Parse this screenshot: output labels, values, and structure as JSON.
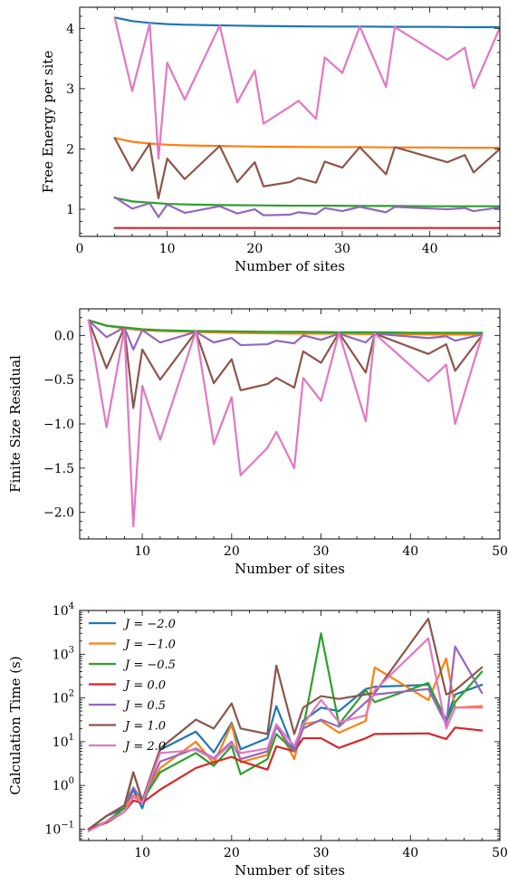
{
  "chart_data": [
    {
      "type": "line",
      "xlabel": "Number of sites",
      "ylabel": "Free Energy per site",
      "xlim": [
        0,
        48
      ],
      "ylim": [
        0.55,
        4.35
      ],
      "xticks": [
        0,
        10,
        20,
        30,
        40
      ],
      "yticks": [
        1,
        2,
        3,
        4
      ],
      "series": [
        {
          "color": "#1f77b4",
          "x": [
            4,
            6,
            8,
            10,
            12,
            16,
            20,
            24,
            28,
            32,
            36,
            40,
            44,
            48
          ],
          "y": [
            4.18,
            4.12,
            4.09,
            4.07,
            4.06,
            4.05,
            4.04,
            4.035,
            4.03,
            4.03,
            4.025,
            4.025,
            4.02,
            4.02
          ]
        },
        {
          "color": "#ff7f0e",
          "x": [
            4,
            6,
            8,
            10,
            12,
            16,
            20,
            24,
            28,
            32,
            36,
            40,
            44,
            48
          ],
          "y": [
            2.18,
            2.12,
            2.09,
            2.07,
            2.06,
            2.05,
            2.04,
            2.035,
            2.03,
            2.03,
            2.025,
            2.025,
            2.02,
            2.02
          ]
        },
        {
          "color": "#2ca02c",
          "x": [
            4,
            6,
            8,
            10,
            12,
            16,
            20,
            24,
            28,
            32,
            36,
            40,
            44,
            48
          ],
          "y": [
            1.19,
            1.13,
            1.11,
            1.09,
            1.08,
            1.07,
            1.065,
            1.06,
            1.06,
            1.055,
            1.055,
            1.05,
            1.05,
            1.05
          ]
        },
        {
          "color": "#d62728",
          "x": [
            4,
            48
          ],
          "y": [
            0.69,
            0.69
          ]
        },
        {
          "color": "#9467bd",
          "x": [
            4,
            6,
            8,
            9,
            10,
            12,
            16,
            18,
            20,
            21,
            24,
            25,
            27,
            28,
            30,
            32,
            35,
            36,
            42,
            44,
            45,
            48
          ],
          "y": [
            1.2,
            1.01,
            1.1,
            0.87,
            1.08,
            0.94,
            1.05,
            0.93,
            1.0,
            0.9,
            0.91,
            0.95,
            0.92,
            1.02,
            0.97,
            1.04,
            0.95,
            1.04,
            1.0,
            1.02,
            0.97,
            1.03
          ]
        },
        {
          "color": "#8c564b",
          "x": [
            4,
            6,
            8,
            9,
            10,
            12,
            16,
            18,
            20,
            21,
            24,
            25,
            27,
            28,
            30,
            32,
            35,
            36,
            42,
            44,
            45,
            48
          ],
          "y": [
            2.18,
            1.64,
            2.09,
            1.18,
            1.84,
            1.5,
            2.05,
            1.45,
            1.78,
            1.38,
            1.45,
            1.52,
            1.44,
            1.79,
            1.69,
            2.03,
            1.58,
            2.03,
            1.78,
            1.9,
            1.61,
            2.0
          ]
        },
        {
          "color": "#e377c2",
          "x": [
            4,
            6,
            8,
            9,
            10,
            12,
            16,
            18,
            20,
            21,
            24,
            25,
            27,
            28,
            30,
            32,
            35,
            36,
            42,
            44,
            45,
            48
          ],
          "y": [
            4.18,
            2.96,
            4.08,
            1.84,
            3.43,
            2.82,
            4.05,
            2.77,
            3.3,
            2.42,
            2.7,
            2.8,
            2.5,
            3.52,
            3.26,
            4.03,
            3.03,
            4.02,
            3.48,
            3.68,
            3.01,
            4.01
          ]
        }
      ]
    },
    {
      "type": "line",
      "xlabel": "Number of sites",
      "ylabel": "Finite Size Residual",
      "xlim": [
        3,
        50
      ],
      "ylim": [
        -2.3,
        0.3
      ],
      "xticks": [
        10,
        20,
        30,
        40,
        50
      ],
      "yticks": [
        0.0,
        -0.5,
        -1.0,
        -1.5,
        -2.0
      ],
      "ytick_labels": [
        "0.0",
        "−0.5",
        "−1.0",
        "−1.5",
        "−2.0"
      ],
      "series": [
        {
          "color": "#1f77b4",
          "x": [
            4,
            6,
            8,
            10,
            12,
            16,
            20,
            24,
            28,
            32,
            36,
            40,
            44,
            48
          ],
          "y": [
            0.17,
            0.11,
            0.08,
            0.06,
            0.05,
            0.04,
            0.03,
            0.025,
            0.02,
            0.02,
            0.015,
            0.015,
            0.01,
            0.01
          ]
        },
        {
          "color": "#ff7f0e",
          "x": [
            4,
            6,
            8,
            10,
            12,
            16,
            20,
            24,
            28,
            32,
            36,
            40,
            44,
            48
          ],
          "y": [
            0.17,
            0.11,
            0.08,
            0.06,
            0.05,
            0.04,
            0.03,
            0.025,
            0.02,
            0.02,
            0.015,
            0.015,
            0.01,
            0.01
          ]
        },
        {
          "color": "#2ca02c",
          "x": [
            4,
            6,
            8,
            10,
            12,
            16,
            20,
            24,
            28,
            32,
            36,
            40,
            44,
            48
          ],
          "y": [
            0.17,
            0.11,
            0.09,
            0.07,
            0.06,
            0.05,
            0.045,
            0.04,
            0.04,
            0.035,
            0.035,
            0.03,
            0.03,
            0.03
          ]
        },
        {
          "color": "#9467bd",
          "x": [
            4,
            6,
            8,
            9,
            10,
            12,
            16,
            18,
            20,
            21,
            24,
            25,
            27,
            28,
            30,
            32,
            35,
            36,
            42,
            44,
            45,
            48
          ],
          "y": [
            0.17,
            -0.02,
            0.09,
            -0.16,
            0.06,
            -0.08,
            0.04,
            -0.08,
            -0.03,
            -0.11,
            -0.1,
            -0.06,
            -0.09,
            0.0,
            -0.05,
            0.02,
            -0.08,
            0.02,
            -0.03,
            -0.01,
            -0.06,
            0.01
          ]
        },
        {
          "color": "#8c564b",
          "x": [
            4,
            6,
            8,
            9,
            10,
            12,
            16,
            18,
            20,
            21,
            24,
            25,
            27,
            28,
            30,
            32,
            35,
            36,
            42,
            44,
            45,
            48
          ],
          "y": [
            0.17,
            -0.37,
            0.09,
            -0.82,
            -0.16,
            -0.5,
            0.04,
            -0.54,
            -0.27,
            -0.62,
            -0.55,
            -0.48,
            -0.59,
            -0.18,
            -0.31,
            0.03,
            -0.42,
            0.02,
            -0.21,
            -0.1,
            -0.4,
            0.0
          ]
        },
        {
          "color": "#e377c2",
          "x": [
            4,
            6,
            8,
            9,
            10,
            12,
            16,
            18,
            20,
            21,
            24,
            25,
            27,
            28,
            30,
            32,
            35,
            36,
            42,
            44,
            45,
            48
          ],
          "y": [
            0.17,
            -1.04,
            0.07,
            -2.16,
            -0.57,
            -1.18,
            0.05,
            -1.23,
            -0.7,
            -1.58,
            -1.27,
            -1.09,
            -1.5,
            -0.48,
            -0.74,
            0.03,
            -0.97,
            0.02,
            -0.52,
            -0.33,
            -1.0,
            0.0
          ]
        }
      ]
    },
    {
      "type": "line",
      "xlabel": "Number of sites",
      "ylabel": "Calculation Time (s)",
      "yscale": "log",
      "xlim": [
        3,
        50
      ],
      "ylim": [
        0.055,
        10000
      ],
      "xticks": [
        10,
        20,
        30,
        40,
        50
      ],
      "yticks": [
        0.1,
        1,
        10,
        100,
        1000,
        10000
      ],
      "ytick_labels": [
        [
          "10",
          "−1"
        ],
        [
          "10",
          "0"
        ],
        [
          "10",
          "1"
        ],
        [
          "10",
          "2"
        ],
        [
          "10",
          "3"
        ],
        [
          "10",
          "4"
        ]
      ],
      "legend": "upper-left",
      "series": [
        {
          "name": "J = −2.0",
          "color": "#1f77b4",
          "x": [
            4,
            6,
            8,
            9,
            10,
            12,
            16,
            18,
            20,
            21,
            24,
            25,
            27,
            28,
            30,
            32,
            35,
            36,
            42,
            44,
            45,
            48
          ],
          "y": [
            0.1,
            0.2,
            0.3,
            0.8,
            0.3,
            6.5,
            17,
            5.7,
            27,
            6.7,
            12,
            65,
            6.2,
            30,
            60,
            50,
            160,
            180,
            200,
            32,
            120,
            200
          ]
        },
        {
          "name": "J = −1.0",
          "color": "#ff7f0e",
          "x": [
            4,
            6,
            8,
            9,
            10,
            12,
            16,
            18,
            20,
            21,
            24,
            25,
            27,
            28,
            30,
            32,
            35,
            36,
            42,
            44,
            45,
            48
          ],
          "y": [
            0.1,
            0.15,
            0.3,
            0.6,
            0.45,
            2.5,
            10,
            3.2,
            25,
            3.4,
            5,
            25,
            4,
            25,
            30,
            16,
            30,
            500,
            90,
            800,
            60,
            65
          ]
        },
        {
          "name": "J = −0.5",
          "color": "#2ca02c",
          "x": [
            4,
            6,
            8,
            9,
            10,
            12,
            16,
            18,
            20,
            21,
            24,
            25,
            27,
            28,
            30,
            32,
            35,
            36,
            42,
            44,
            45,
            48
          ],
          "y": [
            0.1,
            0.15,
            0.3,
            2.0,
            0.45,
            2.0,
            5.5,
            2.8,
            8,
            1.8,
            4,
            15,
            6,
            20,
            3000,
            25,
            150,
            80,
            220,
            28,
            80,
            400
          ]
        },
        {
          "name": "J = 0.0",
          "color": "#d62728",
          "x": [
            4,
            6,
            8,
            9,
            10,
            12,
            16,
            18,
            20,
            21,
            24,
            25,
            27,
            28,
            30,
            32,
            35,
            36,
            42,
            44,
            45,
            48
          ],
          "y": [
            0.1,
            0.14,
            0.25,
            0.45,
            0.4,
            0.8,
            2.5,
            3.4,
            4.5,
            3.6,
            2.3,
            7.8,
            6,
            12,
            12,
            7.2,
            12,
            15,
            15.5,
            11.5,
            21,
            18
          ]
        },
        {
          "name": "J = 0.5",
          "color": "#9467bd",
          "x": [
            4,
            6,
            8,
            9,
            10,
            12,
            16,
            18,
            20,
            21,
            24,
            25,
            27,
            28,
            30,
            32,
            35,
            36,
            42,
            44,
            45,
            48
          ],
          "y": [
            0.1,
            0.2,
            0.35,
            0.9,
            0.45,
            3.5,
            7,
            4.2,
            10,
            4,
            6,
            22,
            6,
            20,
            32,
            22,
            80,
            120,
            160,
            25,
            1500,
            130
          ]
        },
        {
          "name": "J = 1.0",
          "color": "#8c564b",
          "x": [
            4,
            6,
            8,
            9,
            10,
            12,
            16,
            18,
            20,
            21,
            24,
            25,
            27,
            28,
            30,
            32,
            35,
            36,
            42,
            44,
            45,
            48
          ],
          "y": [
            0.1,
            0.2,
            0.35,
            2.0,
            0.45,
            7,
            32,
            20,
            75,
            20,
            15,
            550,
            15,
            60,
            110,
            95,
            120,
            130,
            6500,
            120,
            150,
            500
          ]
        },
        {
          "name": "J = 2.0",
          "color": "#e377c2",
          "x": [
            4,
            6,
            8,
            9,
            10,
            12,
            16,
            18,
            20,
            21,
            24,
            25,
            27,
            28,
            30,
            32,
            35,
            36,
            42,
            44,
            45,
            48
          ],
          "y": [
            0.09,
            0.15,
            0.25,
            0.55,
            0.4,
            5.5,
            6.5,
            4,
            9,
            5.5,
            7,
            25,
            8,
            25,
            90,
            28,
            40,
            150,
            2300,
            20,
            60,
            60
          ]
        }
      ]
    }
  ]
}
